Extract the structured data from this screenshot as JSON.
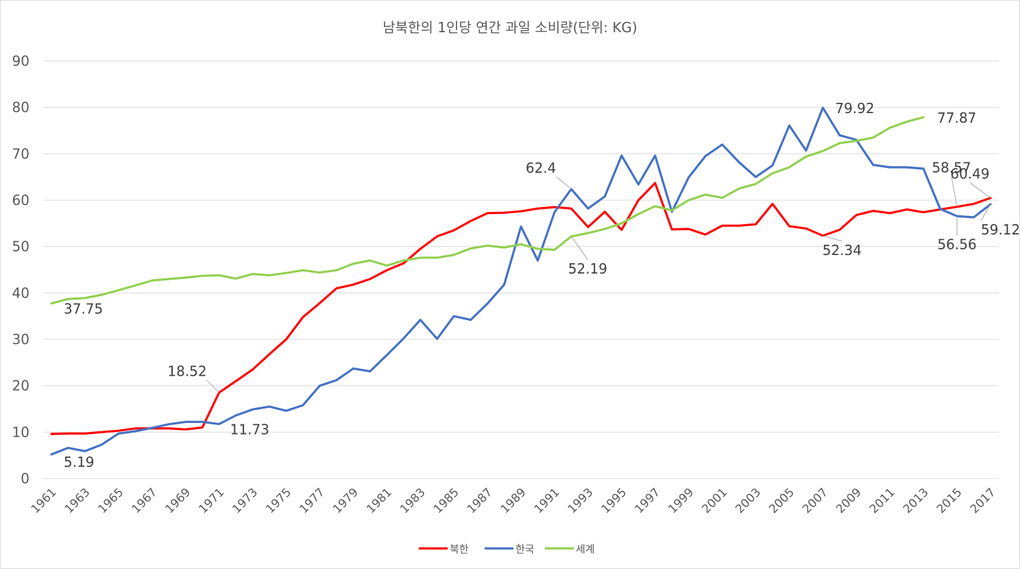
{
  "chart_data": {
    "type": "line",
    "title": "남북한의 1인당 연간 과일 소비량(단위: KG)",
    "xlabel": "",
    "ylabel": "",
    "ylim": [
      0,
      90
    ],
    "yticks": [
      0,
      10,
      20,
      30,
      40,
      50,
      60,
      70,
      80,
      90
    ],
    "x": [
      1961,
      1962,
      1963,
      1964,
      1965,
      1966,
      1967,
      1968,
      1969,
      1970,
      1971,
      1972,
      1973,
      1974,
      1975,
      1976,
      1977,
      1978,
      1979,
      1980,
      1981,
      1982,
      1983,
      1984,
      1985,
      1986,
      1987,
      1988,
      1989,
      1990,
      1991,
      1992,
      1993,
      1994,
      1995,
      1996,
      1997,
      1998,
      1999,
      2000,
      2001,
      2002,
      2003,
      2004,
      2005,
      2006,
      2007,
      2008,
      2009,
      2010,
      2011,
      2012,
      2013,
      2014,
      2015,
      2016,
      2017
    ],
    "xtick_labels": [
      "1961",
      "1963",
      "1965",
      "1967",
      "1969",
      "1971",
      "1973",
      "1975",
      "1977",
      "1979",
      "1981",
      "1983",
      "1985",
      "1987",
      "1989",
      "1991",
      "1993",
      "1995",
      "1997",
      "1999",
      "2001",
      "2003",
      "2005",
      "2007",
      "2009",
      "2011",
      "2013",
      "2015",
      "2017"
    ],
    "grid": true,
    "legend_position": "bottom",
    "series": [
      {
        "name": "북한",
        "color": "#ff0000",
        "values": [
          9.6,
          9.7,
          9.7,
          10.0,
          10.3,
          10.8,
          10.8,
          10.8,
          10.6,
          11.0,
          18.52,
          21.0,
          23.5,
          26.8,
          30.0,
          34.8,
          37.8,
          41.0,
          41.8,
          43.0,
          44.9,
          46.4,
          49.5,
          52.2,
          53.5,
          55.5,
          57.2,
          57.3,
          57.6,
          58.2,
          58.5,
          58.2,
          54.2,
          57.5,
          53.6,
          60.0,
          63.7,
          53.7,
          53.8,
          52.6,
          54.5,
          54.5,
          54.8,
          59.2,
          54.4,
          53.9,
          52.34,
          53.6,
          56.8,
          57.7,
          57.2,
          58.0,
          57.4,
          58.0,
          58.57,
          59.2,
          60.49
        ]
      },
      {
        "name": "한국",
        "color": "#4472c4",
        "values": [
          5.19,
          6.6,
          5.9,
          7.3,
          9.7,
          10.2,
          10.9,
          11.7,
          12.2,
          12.2,
          11.73,
          13.6,
          14.9,
          15.5,
          14.6,
          15.8,
          20.0,
          21.2,
          23.7,
          23.1,
          26.6,
          30.2,
          34.2,
          30.1,
          35.0,
          34.2,
          37.7,
          41.8,
          54.3,
          47.0,
          57.4,
          62.4,
          58.2,
          60.8,
          69.6,
          63.4,
          69.6,
          57.5,
          64.9,
          69.5,
          72.0,
          68.2,
          65.0,
          67.5,
          76.1,
          70.7,
          79.92,
          74.0,
          73.0,
          67.6,
          67.1,
          67.1,
          66.8,
          58.1,
          56.56,
          56.3,
          59.12
        ]
      },
      {
        "name": "세계",
        "color": "#92d050",
        "values": [
          37.75,
          38.7,
          38.9,
          39.6,
          40.6,
          41.6,
          42.7,
          43.0,
          43.3,
          43.7,
          43.8,
          43.1,
          44.1,
          43.8,
          44.3,
          44.9,
          44.4,
          44.9,
          46.3,
          47.0,
          45.9,
          47.0,
          47.6,
          47.6,
          48.2,
          49.6,
          50.2,
          49.8,
          50.5,
          49.5,
          49.3,
          52.19,
          52.9,
          53.8,
          55.0,
          57.0,
          58.7,
          57.8,
          60.0,
          61.2,
          60.5,
          62.5,
          63.5,
          65.8,
          67.1,
          69.4,
          70.6,
          72.3,
          72.8,
          73.5,
          75.6,
          76.9,
          77.87,
          null,
          null,
          null,
          null
        ]
      }
    ],
    "annotations": [
      {
        "series": 0,
        "x": 1971,
        "text": "18.52"
      },
      {
        "series": 0,
        "x": 2007,
        "text": "52.34"
      },
      {
        "series": 0,
        "x": 2015,
        "text": "58.57"
      },
      {
        "series": 0,
        "x": 2017,
        "text": "60.49"
      },
      {
        "series": 1,
        "x": 1961,
        "text": "5.19"
      },
      {
        "series": 1,
        "x": 1971,
        "text": "11.73"
      },
      {
        "series": 1,
        "x": 1992,
        "text": "62.4"
      },
      {
        "series": 1,
        "x": 2007,
        "text": "79.92"
      },
      {
        "series": 1,
        "x": 2015,
        "text": "56.56"
      },
      {
        "series": 1,
        "x": 2017,
        "text": "59.12"
      },
      {
        "series": 2,
        "x": 1961,
        "text": "37.75"
      },
      {
        "series": 2,
        "x": 1992,
        "text": "52.19"
      },
      {
        "series": 2,
        "x": 2013,
        "text": "77.87"
      }
    ]
  }
}
